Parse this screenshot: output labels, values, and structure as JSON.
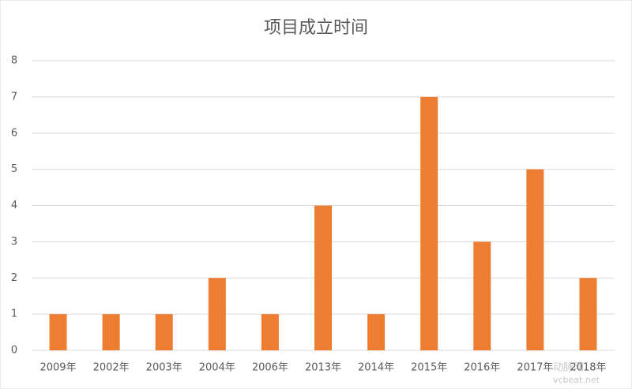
{
  "chart_data": {
    "type": "bar",
    "title": "项目成立时间",
    "categories": [
      "2009年",
      "2002年",
      "2003年",
      "2004年",
      "2006年",
      "2013年",
      "2014年",
      "2015年",
      "2016年",
      "2017年",
      "2018年"
    ],
    "values": [
      1,
      1,
      1,
      2,
      1,
      4,
      1,
      7,
      3,
      5,
      2
    ],
    "color": "#ed7d31",
    "ylim": [
      0,
      8
    ],
    "yticks": [
      0,
      1,
      2,
      3,
      4,
      5,
      6,
      7,
      8
    ],
    "grid": true,
    "watermark": {
      "brand": "动脉网",
      "site": "vcbeat.net"
    }
  }
}
